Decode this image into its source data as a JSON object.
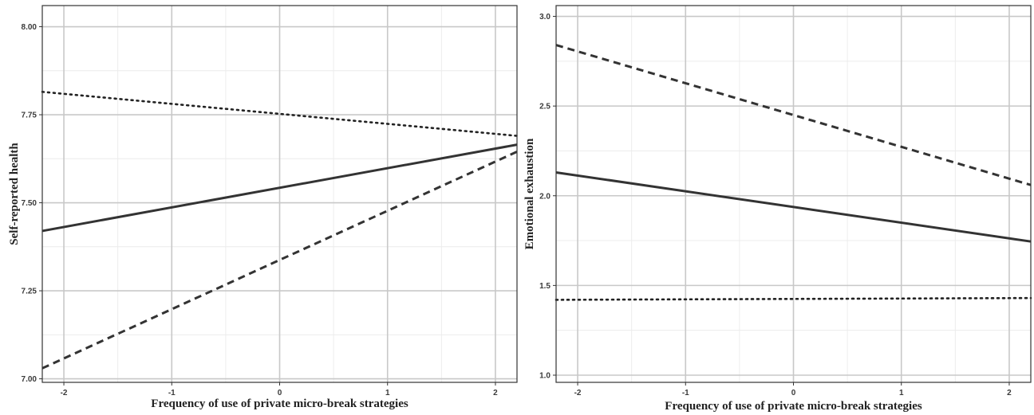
{
  "chart_data": [
    {
      "type": "line",
      "title": "",
      "xlabel": "Frequency of use of private micro-break strategies",
      "ylabel": "Self-reported health",
      "xlim": [
        -2.2,
        2.2
      ],
      "ylim": [
        6.99,
        8.06
      ],
      "x_ticks": [
        -2,
        -1,
        0,
        1,
        2
      ],
      "y_ticks": [
        7.0,
        7.25,
        7.5,
        7.75,
        8.0
      ],
      "x_tick_labels": [
        "-2",
        "-1",
        "0",
        "1",
        "2"
      ],
      "y_tick_labels": [
        "7.00",
        "7.25",
        "7.50",
        "7.75",
        "8.00"
      ],
      "grid": true,
      "legend": "none",
      "series": [
        {
          "style": "dotted",
          "color": "#222222",
          "x": [
            -2.2,
            2.2
          ],
          "y": [
            7.815,
            7.69
          ]
        },
        {
          "style": "solid",
          "color": "#333333",
          "x": [
            -2.2,
            2.2
          ],
          "y": [
            7.42,
            7.665
          ]
        },
        {
          "style": "dashed",
          "color": "#333333",
          "x": [
            -2.2,
            2.2
          ],
          "y": [
            7.03,
            7.645
          ]
        }
      ]
    },
    {
      "type": "line",
      "title": "",
      "xlabel": "Frequency of use of private micro-break strategies",
      "ylabel": "Emotional exhaustion",
      "xlim": [
        -2.2,
        2.2
      ],
      "ylim": [
        0.96,
        3.06
      ],
      "x_ticks": [
        -2,
        -1,
        0,
        1,
        2
      ],
      "y_ticks": [
        1.0,
        1.5,
        2.0,
        2.5,
        3.0
      ],
      "x_tick_labels": [
        "-2",
        "-1",
        "0",
        "1",
        "2"
      ],
      "y_tick_labels": [
        "1.0",
        "1.5",
        "2.0",
        "2.5",
        "3.0"
      ],
      "grid": true,
      "legend": "none",
      "series": [
        {
          "style": "dashed",
          "color": "#333333",
          "x": [
            -2.2,
            2.2
          ],
          "y": [
            2.84,
            2.06
          ]
        },
        {
          "style": "solid",
          "color": "#333333",
          "x": [
            -2.2,
            2.2
          ],
          "y": [
            2.13,
            1.745
          ]
        },
        {
          "style": "dotted",
          "color": "#222222",
          "x": [
            -2.2,
            2.2
          ],
          "y": [
            1.42,
            1.43
          ]
        }
      ]
    }
  ]
}
